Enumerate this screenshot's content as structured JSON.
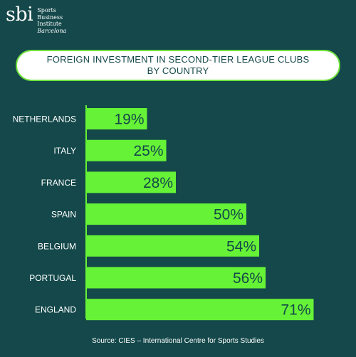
{
  "logo": {
    "mark": "sbi",
    "line1": "Sports",
    "line2": "Business",
    "line3": "Institute",
    "line4": "Barcelona"
  },
  "chart_data": {
    "type": "bar",
    "orientation": "horizontal",
    "title_line1": "FOREIGN INVESTMENT IN SECOND-TIER LEAGUE CLUBS",
    "title_line2": "BY COUNTRY",
    "categories": [
      "NETHERLANDS",
      "ITALY",
      "FRANCE",
      "SPAIN",
      "BELGIUM",
      "PORTUGAL",
      "ENGLAND"
    ],
    "values": [
      19,
      25,
      28,
      50,
      54,
      56,
      71
    ],
    "value_labels": [
      "19%",
      "25%",
      "28%",
      "50%",
      "54%",
      "56%",
      "71%"
    ],
    "xlim": [
      0,
      100
    ],
    "grid": false,
    "colors": {
      "bar": "#66f236",
      "axis": "#66f236",
      "value_text": "#14484a",
      "category_text": "#ffffff",
      "background": "#14484a"
    }
  },
  "source": "Source: CIES – International Centre for Sports Studies"
}
